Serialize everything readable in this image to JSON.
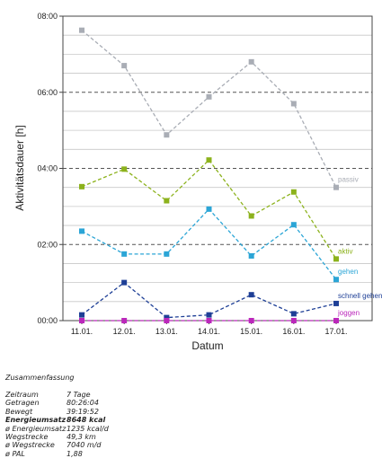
{
  "chart_data": {
    "type": "line",
    "xlabel": "Datum",
    "ylabel": "Aktivitätsdauer [h]",
    "categories": [
      "11.01.",
      "12.01.",
      "13.01.",
      "14.01.",
      "15.01.",
      "16.01.",
      "17.01."
    ],
    "y_ticks": [
      "00:00",
      "02:00",
      "04:00",
      "06:00",
      "08:00"
    ],
    "ylim": [
      0,
      8
    ],
    "grid": true,
    "series": [
      {
        "name": "passiv",
        "color": "#a9adb5",
        "values": [
          7.63,
          6.7,
          4.88,
          5.88,
          6.8,
          5.7,
          3.5
        ]
      },
      {
        "name": "aktiv",
        "color": "#8cb21c",
        "values": [
          3.52,
          3.98,
          3.15,
          4.22,
          2.75,
          3.38,
          1.62
        ]
      },
      {
        "name": "gehen",
        "color": "#2ba5d6",
        "values": [
          2.35,
          1.75,
          1.75,
          2.93,
          1.7,
          2.52,
          1.08
        ]
      },
      {
        "name": "schnell gehen",
        "color": "#1e3f96",
        "values": [
          0.15,
          1.0,
          0.08,
          0.15,
          0.68,
          0.18,
          0.45
        ]
      },
      {
        "name": "joggen",
        "color": "#bb28bb",
        "values": [
          0.0,
          0.0,
          0.0,
          0.0,
          0.0,
          0.0,
          0.0
        ]
      }
    ]
  },
  "summary": {
    "title": "Zusammenfassung",
    "rows": [
      {
        "label": "Zeitraum",
        "value": "7 Tage",
        "bold": false
      },
      {
        "label": "Getragen",
        "value": "80:26:04",
        "bold": false
      },
      {
        "label": "Bewegt",
        "value": "39:19:52",
        "bold": false
      },
      {
        "label": "Energieumsatz",
        "value": "8648 kcal",
        "bold": true
      },
      {
        "label": "ø Energieumsatz",
        "value": "1235 kcal/d",
        "bold": false
      },
      {
        "label": "Wegstrecke",
        "value": "49,3 km",
        "bold": false
      },
      {
        "label": "ø Wegstrecke",
        "value": "7040 m/d",
        "bold": false
      },
      {
        "label": "ø PAL",
        "value": "1,88",
        "bold": false
      }
    ]
  }
}
